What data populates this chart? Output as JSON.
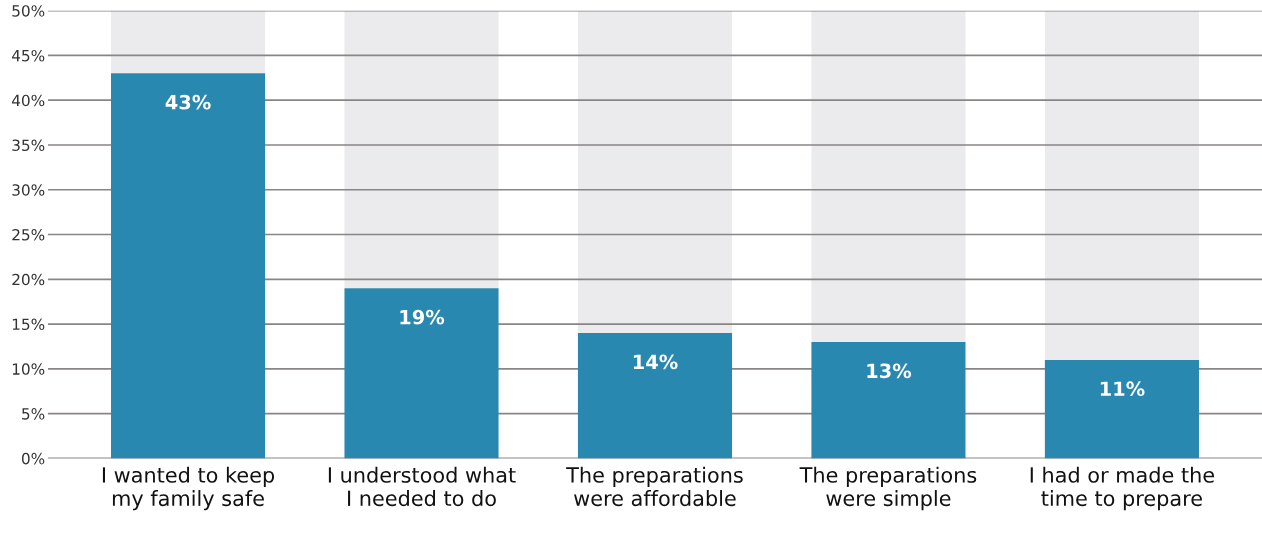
{
  "chart_data": {
    "type": "bar",
    "stacked": true,
    "categories": [
      "I wanted to keep my family safe",
      "I understood what I needed to do",
      "The preparations were affordable",
      "The preparations were simple",
      "I had or made the time to prepare"
    ],
    "series": [
      {
        "color": "#2988b0",
        "values": [
          43,
          19,
          14,
          13,
          11
        ],
        "value_labels": [
          "43%",
          "19%",
          "14%",
          "13%",
          "11%"
        ]
      },
      {
        "color": "#ebebed",
        "values": [
          7,
          31,
          36,
          37,
          39
        ]
      }
    ],
    "ylim": [
      0,
      50
    ],
    "yticks": [
      {
        "value": 0,
        "label": "0%"
      },
      {
        "value": 5,
        "label": "5%"
      },
      {
        "value": 10,
        "label": "10%"
      },
      {
        "value": 15,
        "label": "15%"
      },
      {
        "value": 20,
        "label": "20%"
      },
      {
        "value": 25,
        "label": "25%"
      },
      {
        "value": 30,
        "label": "30%"
      },
      {
        "value": 35,
        "label": "35%"
      },
      {
        "value": 40,
        "label": "40%"
      },
      {
        "value": 45,
        "label": "45%"
      },
      {
        "value": 50,
        "label": "50%"
      }
    ],
    "grid": "y"
  }
}
